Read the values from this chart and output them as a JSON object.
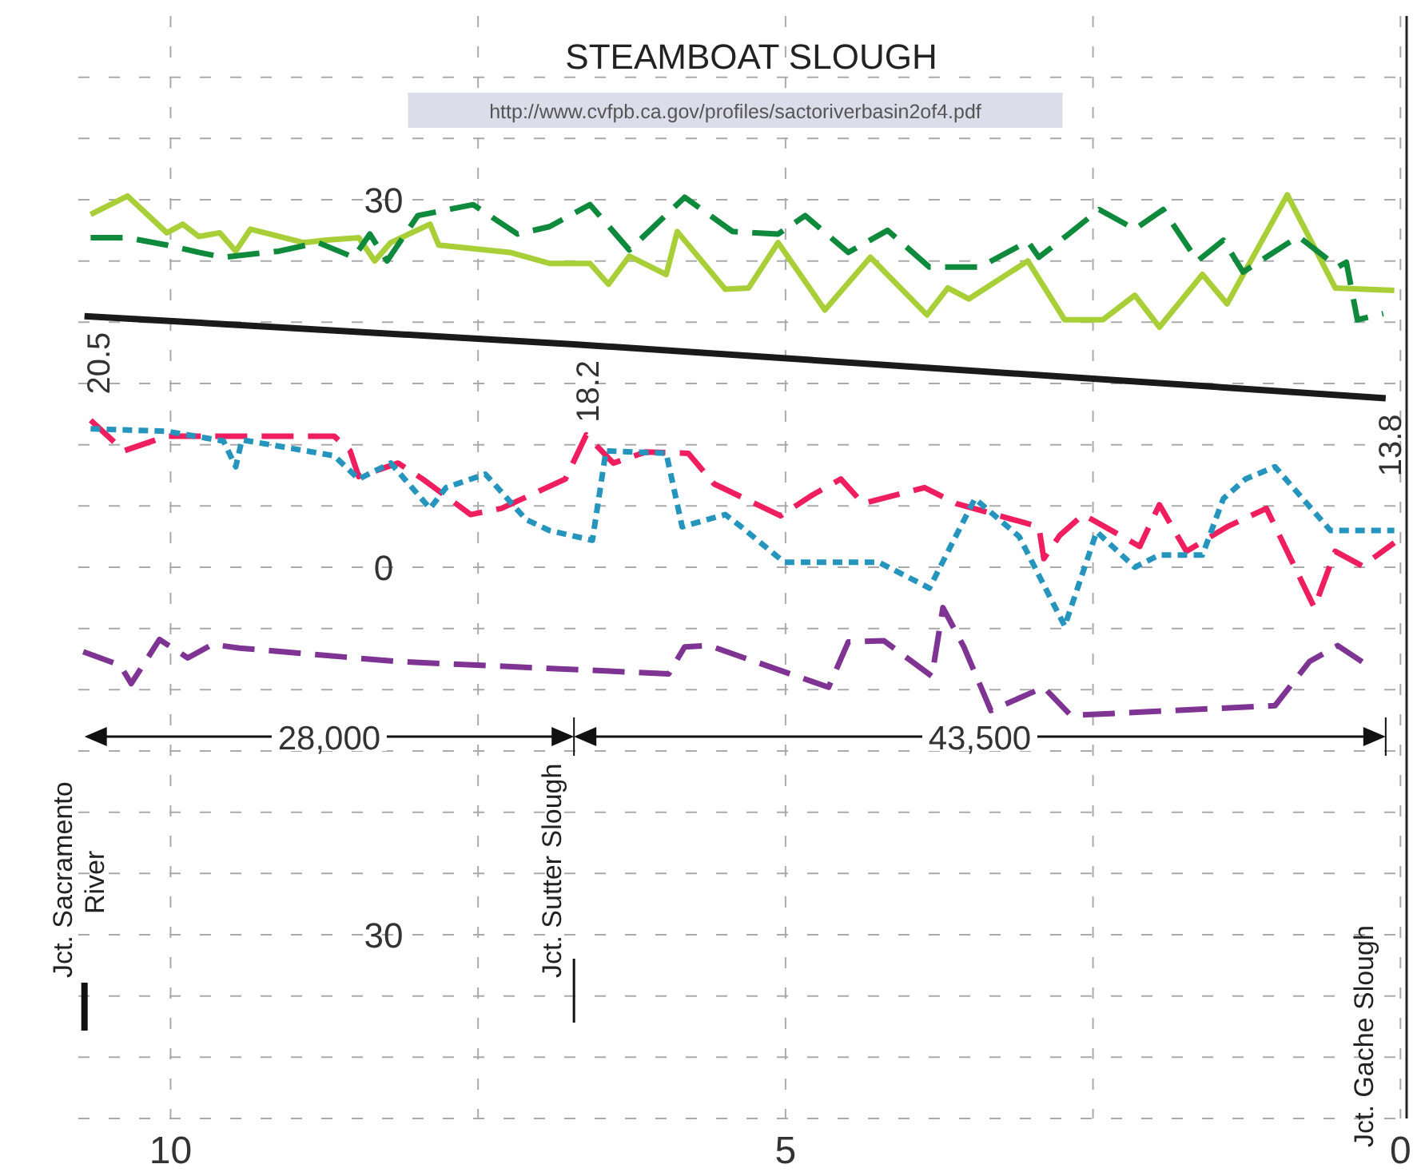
{
  "chart_data": {
    "type": "line",
    "title": "STEAMBOAT SLOUGH",
    "xlim": [
      10.75,
      -0.05
    ],
    "ylim": [
      -45,
      45
    ],
    "xticks": [
      10,
      {
        "value": 7.5,
        "label": null
      },
      5,
      {
        "value": 2.5,
        "label": null
      },
      0
    ],
    "yticks": [
      {
        "value": -45,
        "label": null
      },
      {
        "value": -40,
        "label": null
      },
      {
        "value": -35,
        "label": null
      },
      {
        "value": -30,
        "label": "30"
      },
      {
        "value": -25,
        "label": null
      },
      {
        "value": -20,
        "label": null
      },
      {
        "value": -15,
        "label": null
      },
      {
        "value": -10,
        "label": null
      },
      {
        "value": -5,
        "label": null
      },
      0,
      {
        "value": 5,
        "label": null
      },
      {
        "value": 10,
        "label": null
      },
      {
        "value": 15,
        "label": null
      },
      {
        "value": 20,
        "label": null
      },
      {
        "value": 25,
        "label": null
      },
      30,
      {
        "value": 35,
        "label": null
      },
      {
        "value": 40,
        "label": null
      }
    ],
    "grid": true,
    "series": [
      {
        "color": "#a8cf38",
        "line_style": "solid",
        "x": [
          10.65,
          10.35,
          10.03,
          9.9,
          9.77,
          9.6,
          9.47,
          9.35,
          8.92,
          8.73,
          8.47,
          8.34,
          8.21,
          7.89,
          7.82,
          7.24,
          6.92,
          6.59,
          6.44,
          6.27,
          5.97,
          5.88,
          5.49,
          5.3,
          5.06,
          4.68,
          4.31,
          3.85,
          3.68,
          3.51,
          3.03,
          2.73,
          2.42,
          2.16,
          1.96,
          1.61,
          1.41,
          0.92,
          0.53,
          0.05
        ],
        "values": [
          28.8,
          30.3,
          27.3,
          28.0,
          27.0,
          27.3,
          25.8,
          27.6,
          26.5,
          26.7,
          26.9,
          25.0,
          26.5,
          28.0,
          26.3,
          25.7,
          24.8,
          24.8,
          23.1,
          25.4,
          23.9,
          27.4,
          22.7,
          22.8,
          26.5,
          21.0,
          25.3,
          20.6,
          22.8,
          21.9,
          25.0,
          20.2,
          20.2,
          22.2,
          19.6,
          23.9,
          21.5,
          30.4,
          22.8,
          22.6
        ]
      },
      {
        "color": "#0f8a3c",
        "line_style": "dashed",
        "x": [
          10.65,
          10.35,
          10.03,
          9.77,
          9.57,
          9.12,
          8.8,
          8.51,
          8.38,
          8.24,
          7.99,
          7.54,
          7.18,
          6.92,
          6.59,
          6.27,
          5.82,
          5.43,
          5.06,
          4.84,
          4.49,
          4.17,
          3.83,
          3.42,
          3.03,
          2.94,
          2.71,
          2.45,
          2.16,
          1.93,
          1.65,
          1.44,
          1.28,
          0.83,
          0.51,
          0.44,
          0.35,
          0.14
        ],
        "values": [
          26.9,
          26.9,
          26.3,
          25.7,
          25.3,
          25.8,
          26.5,
          25.3,
          27.2,
          25.0,
          28.7,
          29.6,
          27.2,
          27.8,
          29.6,
          25.9,
          30.2,
          27.4,
          27.2,
          28.7,
          25.7,
          27.5,
          24.5,
          24.5,
          26.6,
          25.3,
          27.1,
          29.2,
          27.6,
          29.2,
          25.0,
          26.7,
          24.1,
          27.0,
          24.5,
          24.9,
          20.2,
          20.7
        ]
      },
      {
        "color": "#1a1a1a",
        "line_style": "solid",
        "x": [
          10.7,
          6.72,
          0.12
        ],
        "values": [
          20.5,
          18.2,
          13.8
        ]
      },
      {
        "color": "#ee1e5f",
        "line_style": "dashed",
        "x": [
          10.65,
          10.38,
          10.03,
          8.67,
          8.54,
          8.47,
          8.15,
          7.95,
          7.56,
          7.31,
          6.79,
          6.62,
          6.4,
          6.14,
          5.79,
          5.58,
          5.04,
          4.78,
          4.55,
          4.37,
          3.87,
          3.61,
          2.94,
          2.9,
          2.77,
          2.58,
          2.12,
          1.96,
          1.74,
          1.41,
          1.09,
          0.7,
          0.53,
          0.31,
          0.05
        ],
        "values": [
          12.0,
          9.5,
          10.7,
          10.7,
          9.5,
          7.4,
          8.5,
          7.2,
          4.3,
          4.8,
          7.2,
          10.8,
          8.5,
          9.4,
          9.3,
          6.8,
          4.2,
          5.9,
          7.2,
          5.2,
          6.5,
          5.2,
          3.3,
          0.7,
          2.6,
          4.3,
          1.7,
          5.1,
          1.3,
          3.3,
          4.8,
          -3.3,
          1.3,
          0.1,
          2.0
        ]
      },
      {
        "color": "#2595bd",
        "line_style": "dotted",
        "x": [
          10.65,
          10.03,
          9.57,
          9.47,
          9.42,
          8.67,
          8.47,
          8.21,
          7.89,
          7.76,
          7.44,
          7.11,
          6.92,
          6.57,
          6.46,
          5.97,
          5.84,
          5.49,
          5.36,
          5.01,
          4.24,
          3.83,
          3.46,
          3.1,
          2.73,
          2.47,
          2.16,
          1.96,
          1.61,
          1.44,
          1.26,
          1.02,
          0.57,
          0.05
        ],
        "values": [
          11.3,
          11.1,
          10.3,
          8.2,
          10.4,
          9.1,
          7.2,
          8.5,
          4.8,
          6.5,
          7.6,
          3.9,
          3.0,
          2.2,
          9.5,
          9.3,
          3.3,
          4.3,
          3.3,
          0.4,
          0.4,
          -1.7,
          5.6,
          2.5,
          -4.8,
          2.9,
          0.0,
          1.0,
          1.0,
          5.6,
          7.2,
          8.2,
          3.0,
          3.0
        ]
      },
      {
        "color": "#7f3393",
        "line_style": "dashed",
        "x": [
          10.71,
          10.41,
          10.32,
          10.09,
          9.86,
          9.66,
          9.44,
          8.15,
          5.95,
          5.82,
          5.62,
          4.65,
          4.49,
          4.2,
          3.81,
          3.72,
          3.55,
          3.33,
          2.9,
          2.68,
          1.02,
          0.74,
          0.51,
          0.27
        ],
        "values": [
          -6.9,
          -8.0,
          -9.5,
          -5.9,
          -7.4,
          -6.3,
          -6.6,
          -7.7,
          -8.7,
          -6.5,
          -6.4,
          -9.8,
          -6.1,
          -6.0,
          -8.9,
          -3.3,
          -6.5,
          -11.7,
          -9.8,
          -12.1,
          -11.3,
          -7.7,
          -6.4,
          -8.0
        ]
      }
    ],
    "annotations": [
      {
        "text": "20.5",
        "x": 10.7,
        "y": 20.5
      },
      {
        "text": "18.2",
        "x": 6.72,
        "y": 18.2
      },
      {
        "text": "13.8",
        "x": 0.12,
        "y": 13.8
      },
      "Jct. Sacramento River",
      "Jct. Sutter Slough",
      "Jct. Gache Slough",
      "28,000",
      "43,500",
      "http://www.cvfpb.ca.gov/profiles/sactoriverbasin2of4.pdf"
    ]
  }
}
